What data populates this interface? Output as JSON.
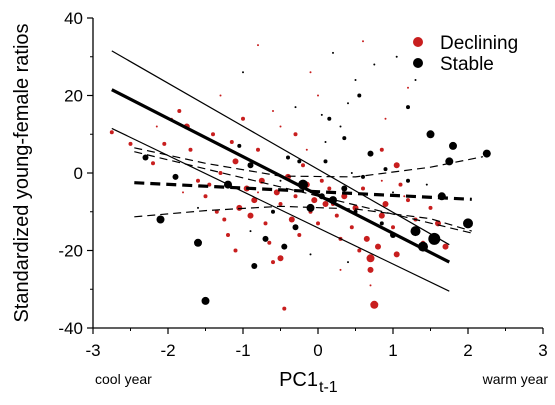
{
  "chart_data": {
    "type": "scatter",
    "ylabel": "Standardized young-female ratios",
    "xlabel_main": "PC1",
    "xlabel_sub": "t-1",
    "xlim": [
      -3,
      3
    ],
    "ylim": [
      -40,
      40
    ],
    "xticks": [
      -3,
      -2,
      -1,
      0,
      1,
      2,
      3
    ],
    "yticks": [
      -40,
      -20,
      0,
      20,
      40
    ],
    "xtick_labels": [
      "-3",
      "-2",
      "-1",
      "0",
      "1",
      "2",
      "3"
    ],
    "ytick_labels": [
      "-40",
      "-20",
      "0",
      "20",
      "40"
    ],
    "x_annotation_left": "cool year",
    "x_annotation_right": "warm year",
    "legend_position": "top-right",
    "series": [
      {
        "name": "Declining",
        "color": "#c81e1e",
        "points": [
          [
            -2.75,
            10.5,
            2
          ],
          [
            -2.5,
            7.5,
            2
          ],
          [
            -2.2,
            2.5,
            2
          ],
          [
            -2.15,
            12,
            1
          ],
          [
            -2.05,
            7.5,
            2
          ],
          [
            -1.95,
            14,
            1
          ],
          [
            -1.85,
            16,
            2
          ],
          [
            -1.75,
            12,
            3
          ],
          [
            -1.7,
            6,
            2
          ],
          [
            -1.6,
            -2,
            2
          ],
          [
            -1.5,
            -6,
            2
          ],
          [
            -1.45,
            -3,
            2
          ],
          [
            -1.4,
            10,
            2
          ],
          [
            -1.35,
            -10,
            2
          ],
          [
            -1.3,
            0,
            2
          ],
          [
            -1.25,
            -12,
            2
          ],
          [
            -1.2,
            -16,
            2
          ],
          [
            -1.15,
            8,
            2
          ],
          [
            -1.1,
            3,
            3
          ],
          [
            -1.05,
            -9,
            3
          ],
          [
            -1.0,
            14,
            2
          ],
          [
            -0.95,
            -4,
            3
          ],
          [
            -0.9,
            -11,
            3
          ],
          [
            -0.85,
            -7,
            3
          ],
          [
            -0.8,
            6,
            2
          ],
          [
            -0.75,
            -2,
            3
          ],
          [
            -0.7,
            -13,
            2
          ],
          [
            -0.65,
            -18,
            2
          ],
          [
            -0.6,
            -23,
            2
          ],
          [
            -0.55,
            -5,
            3
          ],
          [
            -0.5,
            -8,
            2
          ],
          [
            -0.45,
            -35,
            2
          ],
          [
            -0.4,
            -1,
            3
          ],
          [
            -0.35,
            -12,
            3
          ],
          [
            -0.3,
            -6,
            2
          ],
          [
            -0.25,
            -16,
            2
          ],
          [
            -0.2,
            2,
            2
          ],
          [
            -0.15,
            -3,
            3
          ],
          [
            -0.1,
            -10,
            2
          ],
          [
            -0.05,
            -7,
            3
          ],
          [
            0.0,
            -13,
            2
          ],
          [
            0.05,
            -2,
            2
          ],
          [
            0.1,
            -8,
            3
          ],
          [
            0.15,
            -4,
            2
          ],
          [
            0.25,
            -11,
            2
          ],
          [
            0.3,
            -17,
            2
          ],
          [
            0.35,
            -6,
            3
          ],
          [
            0.45,
            -14,
            2
          ],
          [
            0.5,
            -9,
            3
          ],
          [
            0.55,
            -20,
            2
          ],
          [
            0.6,
            -4,
            2
          ],
          [
            0.65,
            -17,
            3
          ],
          [
            0.7,
            -22,
            4
          ],
          [
            0.75,
            -34,
            4
          ],
          [
            0.8,
            -19,
            3
          ],
          [
            0.85,
            -11,
            3
          ],
          [
            0.9,
            -8,
            3
          ],
          [
            1.0,
            -14,
            2
          ],
          [
            1.05,
            -21,
            3
          ],
          [
            1.1,
            -3,
            2
          ],
          [
            1.2,
            -7,
            2
          ],
          [
            1.3,
            -12,
            2
          ],
          [
            1.4,
            -18,
            2
          ],
          [
            1.5,
            -9,
            2
          ],
          [
            1.6,
            -13,
            3
          ],
          [
            1.7,
            -19,
            3
          ],
          [
            -0.5,
            -22,
            3
          ],
          [
            0.2,
            -8,
            2
          ],
          [
            0.7,
            -25,
            3
          ],
          [
            1.05,
            2,
            3
          ],
          [
            -1.1,
            -20,
            2
          ],
          [
            -0.3,
            10,
            2
          ],
          [
            0.85,
            6,
            2
          ]
        ]
      },
      {
        "name": "Stable",
        "color": "#000000",
        "points": [
          [
            -2.3,
            4,
            3
          ],
          [
            -2.1,
            -12,
            4
          ],
          [
            -1.9,
            -1,
            3
          ],
          [
            -1.6,
            -18,
            4
          ],
          [
            -1.5,
            -33,
            4
          ],
          [
            -1.2,
            -3,
            4
          ],
          [
            -0.9,
            2,
            3
          ],
          [
            -0.85,
            -24,
            3
          ],
          [
            -0.7,
            -17,
            3
          ],
          [
            -0.6,
            -10,
            2
          ],
          [
            -0.45,
            -19,
            3
          ],
          [
            -0.3,
            -14,
            3
          ],
          [
            -0.2,
            -3,
            5
          ],
          [
            -0.1,
            -9,
            4
          ],
          [
            0.05,
            -6,
            3
          ],
          [
            0.2,
            -7,
            4
          ],
          [
            0.35,
            -4,
            3
          ],
          [
            0.5,
            -10,
            2
          ],
          [
            0.7,
            5,
            3
          ],
          [
            0.85,
            -13,
            2
          ],
          [
            1.0,
            -16,
            3
          ],
          [
            1.3,
            -15,
            5
          ],
          [
            1.4,
            -19,
            5
          ],
          [
            1.55,
            -17,
            6
          ],
          [
            1.65,
            -6,
            4
          ],
          [
            1.75,
            3,
            4
          ],
          [
            1.8,
            7,
            4
          ],
          [
            1.5,
            10,
            4
          ],
          [
            2.0,
            -13,
            5
          ],
          [
            2.25,
            5,
            4
          ],
          [
            0.6,
            -1,
            2
          ],
          [
            -0.25,
            3,
            2
          ],
          [
            0.1,
            3,
            2
          ],
          [
            0.35,
            9,
            2
          ],
          [
            0.9,
            1,
            2
          ],
          [
            1.2,
            -2,
            2
          ],
          [
            -1.05,
            7,
            2
          ],
          [
            -0.4,
            4,
            2
          ],
          [
            0.15,
            14,
            2
          ],
          [
            0.55,
            20,
            2
          ],
          [
            1.2,
            17,
            2
          ]
        ]
      }
    ],
    "small_points": [
      [
        -0.2,
        2,
        "r"
      ],
      [
        0.1,
        8,
        "k"
      ],
      [
        -0.6,
        16,
        "r"
      ],
      [
        0.3,
        12,
        "k"
      ],
      [
        0.5,
        24,
        "k"
      ],
      [
        0.75,
        28,
        "k"
      ],
      [
        1.05,
        30,
        "k"
      ],
      [
        0.2,
        31,
        "k"
      ],
      [
        -0.1,
        26,
        "r"
      ],
      [
        0.6,
        34,
        "r"
      ],
      [
        -0.8,
        33,
        "r"
      ],
      [
        1.2,
        22,
        "r"
      ],
      [
        -1.0,
        26,
        "k"
      ],
      [
        0.0,
        20,
        "r"
      ],
      [
        -0.3,
        17,
        "k"
      ],
      [
        0.9,
        14,
        "r"
      ],
      [
        1.3,
        24,
        "k"
      ],
      [
        -0.5,
        12,
        "r"
      ],
      [
        0.4,
        18,
        "k"
      ],
      [
        -1.3,
        20,
        "r"
      ],
      [
        1.0,
        -5,
        "k"
      ],
      [
        -0.8,
        -5,
        "r"
      ],
      [
        0.4,
        -23,
        "k"
      ],
      [
        -0.9,
        -15,
        "k"
      ],
      [
        0.7,
        -29,
        "r"
      ],
      [
        -0.1,
        -21,
        "k"
      ],
      [
        0.3,
        -25,
        "r"
      ],
      [
        1.15,
        -6,
        "r"
      ],
      [
        -1.6,
        -9,
        "k"
      ],
      [
        -0.5,
        -2,
        "k"
      ],
      [
        0.85,
        -2,
        "r"
      ],
      [
        1.45,
        -3,
        "k"
      ],
      [
        -1.8,
        -5,
        "r"
      ],
      [
        0.05,
        15,
        "k"
      ],
      [
        0.45,
        0,
        "k"
      ],
      [
        -0.15,
        6,
        "r"
      ]
    ],
    "lines": [
      {
        "role": "Declining regression",
        "color": "#000000",
        "dash": false,
        "width": 3.2,
        "x": [
          -2.75,
          1.75
        ],
        "y": [
          21.5,
          -23
        ]
      },
      {
        "role": "Declining CI upper",
        "color": "#000000",
        "dash": false,
        "width": 1.2,
        "x": [
          -2.75,
          1.75
        ],
        "y": [
          31.5,
          -18.5
        ]
      },
      {
        "role": "Declining CI lower",
        "color": "#000000",
        "dash": false,
        "width": 1.2,
        "x": [
          -2.75,
          1.75
        ],
        "y": [
          11.5,
          -30.5
        ]
      },
      {
        "role": "Stable regression",
        "color": "#000000",
        "dash": true,
        "width": 3.2,
        "x": [
          -2.45,
          2.05
        ],
        "y": [
          -2.5,
          -6.8
        ]
      },
      {
        "role": "Stable CI upper",
        "color": "#000000",
        "dash": true,
        "width": 1.2,
        "x": [
          -2.45,
          -1.5,
          -0.5,
          0.5,
          1.5,
          2.2
        ],
        "y": [
          6.5,
          2.5,
          -0.8,
          -1.0,
          1.5,
          4.2
        ]
      },
      {
        "role": "Stable CI lower",
        "color": "#000000",
        "dash": true,
        "width": 1.2,
        "x": [
          -2.45,
          -1.5,
          -0.5,
          0.5,
          1.5,
          2.05
        ],
        "y": [
          -11.3,
          -9.7,
          -8.6,
          -9.3,
          -11.8,
          -15
        ]
      },
      {
        "role": "Declining mid band",
        "color": "#000000",
        "dash": true,
        "width": 1.2,
        "x": [
          -2.45,
          2.05
        ],
        "y": [
          5.5,
          -15.5
        ]
      }
    ]
  }
}
